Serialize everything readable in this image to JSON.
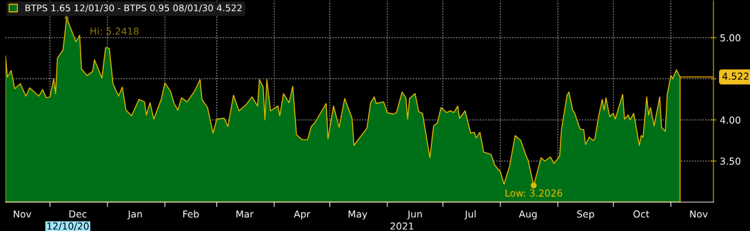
{
  "chart_data": {
    "type": "area",
    "x": [
      "2020-11-07",
      "2020-11-08",
      "2020-11-10",
      "2020-11-12",
      "2020-11-15",
      "2020-11-18",
      "2020-11-20",
      "2020-11-25",
      "2020-11-27",
      "2020-11-29",
      "2020-12-01",
      "2020-12-03",
      "2020-12-04",
      "2020-12-05",
      "2020-12-08",
      "2020-12-10",
      "2020-12-15",
      "2020-12-17",
      "2020-12-18",
      "2020-12-21",
      "2020-12-24",
      "2020-12-25",
      "2020-12-29",
      "2020-12-31",
      "2021-01-02",
      "2021-01-04",
      "2021-01-07",
      "2021-01-09",
      "2021-01-11",
      "2021-01-14",
      "2021-01-18",
      "2021-01-21",
      "2021-01-22",
      "2021-01-24",
      "2021-01-26",
      "2021-01-30",
      "2021-02-01",
      "2021-02-04",
      "2021-02-06",
      "2021-02-08",
      "2021-02-10",
      "2021-02-13",
      "2021-02-17",
      "2021-02-20",
      "2021-02-21",
      "2021-02-24",
      "2021-02-27",
      "2021-03-01",
      "2021-03-05",
      "2021-03-07",
      "2021-03-10",
      "2021-03-13",
      "2021-03-17",
      "2021-03-20",
      "2021-03-23",
      "2021-03-24",
      "2021-03-26",
      "2021-03-27",
      "2021-03-28",
      "2021-03-30",
      "2021-04-03",
      "2021-04-04",
      "2021-04-06",
      "2021-04-09",
      "2021-04-11",
      "2021-04-13",
      "2021-04-16",
      "2021-04-19",
      "2021-04-21",
      "2021-04-23",
      "2021-04-29",
      "2021-04-30",
      "2021-05-03",
      "2021-05-06",
      "2021-05-09",
      "2021-05-13",
      "2021-05-14",
      "2021-05-21",
      "2021-05-23",
      "2021-05-25",
      "2021-05-26",
      "2021-05-30",
      "2021-06-01",
      "2021-06-04",
      "2021-06-06",
      "2021-06-09",
      "2021-06-11",
      "2021-06-12",
      "2021-06-13",
      "2021-06-16",
      "2021-06-18",
      "2021-06-20",
      "2021-06-24",
      "2021-06-26",
      "2021-06-28",
      "2021-06-30",
      "2021-07-03",
      "2021-07-05",
      "2021-07-07",
      "2021-07-09",
      "2021-07-10",
      "2021-07-13",
      "2021-07-16",
      "2021-07-18",
      "2021-07-19",
      "2021-07-21",
      "2021-07-23",
      "2021-07-27",
      "2021-07-29",
      "2021-08-01",
      "2021-08-03",
      "2021-08-06",
      "2021-08-09",
      "2021-08-12",
      "2021-08-15",
      "2021-08-16",
      "2021-08-19",
      "2021-08-23",
      "2021-08-25",
      "2021-08-28",
      "2021-08-30",
      "2021-09-02",
      "2021-09-03",
      "2021-09-06",
      "2021-09-07",
      "2021-09-09",
      "2021-09-10",
      "2021-09-13",
      "2021-09-15",
      "2021-09-16",
      "2021-09-18",
      "2021-09-20",
      "2021-09-21",
      "2021-09-23",
      "2021-09-25",
      "2021-09-26",
      "2021-09-27",
      "2021-09-29",
      "2021-10-01",
      "2021-10-02",
      "2021-10-06",
      "2021-10-07",
      "2021-10-09",
      "2021-10-10",
      "2021-10-12",
      "2021-10-15",
      "2021-10-16",
      "2021-10-17",
      "2021-10-19",
      "2021-10-20",
      "2021-10-21",
      "2021-10-23",
      "2021-10-26",
      "2021-10-27",
      "2021-10-29",
      "2021-10-30",
      "2021-11-01",
      "2021-11-02",
      "2021-11-04",
      "2021-11-06"
    ],
    "series": [
      {
        "name": "BTPS 1.65 12/01/30 - BTPS 0.95 08/01/30 4.522",
        "color": "#007018",
        "values": [
          4.78,
          4.52,
          4.6,
          4.38,
          4.44,
          4.29,
          4.39,
          4.29,
          4.37,
          4.27,
          4.28,
          4.5,
          4.32,
          4.75,
          4.85,
          5.2418,
          4.95,
          5.03,
          4.62,
          4.54,
          4.59,
          4.73,
          4.51,
          4.88,
          4.87,
          4.44,
          4.29,
          4.4,
          4.12,
          4.05,
          4.25,
          4.22,
          4.06,
          4.21,
          4.01,
          4.25,
          4.45,
          4.35,
          4.2,
          4.12,
          4.27,
          4.22,
          4.35,
          4.49,
          4.25,
          4.15,
          3.84,
          4.01,
          4.02,
          3.92,
          4.3,
          4.11,
          4.19,
          4.28,
          4.17,
          4.49,
          4.4,
          4.0,
          4.49,
          4.11,
          4.17,
          4.05,
          4.32,
          4.21,
          4.41,
          3.82,
          3.76,
          3.76,
          3.92,
          3.97,
          4.2,
          3.77,
          4.17,
          3.91,
          4.26,
          4.02,
          3.69,
          3.9,
          4.21,
          4.28,
          4.2,
          4.22,
          4.09,
          4.07,
          4.09,
          4.34,
          4.27,
          4.01,
          4.26,
          4.32,
          4.1,
          4.08,
          3.54,
          3.93,
          3.96,
          4.15,
          4.09,
          4.11,
          4.09,
          4.17,
          4.02,
          4.11,
          3.84,
          3.85,
          3.78,
          3.85,
          3.61,
          3.58,
          3.45,
          3.37,
          3.22,
          3.44,
          3.81,
          3.75,
          3.56,
          3.51,
          3.2026,
          3.54,
          3.5,
          3.55,
          3.47,
          3.56,
          3.89,
          4.3,
          4.34,
          4.12,
          4.09,
          3.89,
          3.88,
          3.7,
          3.79,
          3.75,
          3.77,
          4.04,
          4.25,
          4.12,
          4.27,
          4.04,
          4.08,
          4.01,
          4.31,
          4.01,
          4.06,
          4.0,
          4.08,
          3.69,
          3.81,
          3.79,
          4.28,
          4.06,
          4.15,
          3.93,
          4.28,
          3.91,
          3.86,
          4.3,
          4.54,
          4.5,
          4.61,
          4.522
        ]
      }
    ],
    "xlim": [
      "2020-11-07",
      "2021-11-24"
    ],
    "xticks": [
      {
        "value": "2020-11-16",
        "label": "Nov"
      },
      {
        "value": "2020-12-01",
        "label": null
      },
      {
        "value": "2020-12-16",
        "label": "Dec"
      },
      {
        "value": "2021-01-01",
        "label": null
      },
      {
        "value": "2021-01-16",
        "label": "Jan"
      },
      {
        "value": "2021-02-01",
        "label": null
      },
      {
        "value": "2021-02-15",
        "label": "Feb"
      },
      {
        "value": "2021-03-01",
        "label": null
      },
      {
        "value": "2021-03-16",
        "label": "Mar"
      },
      {
        "value": "2021-04-01",
        "label": null
      },
      {
        "value": "2021-04-16",
        "label": "Apr"
      },
      {
        "value": "2021-05-01",
        "label": null
      },
      {
        "value": "2021-05-16",
        "label": "May"
      },
      {
        "value": "2021-06-01",
        "label": null
      },
      {
        "value": "2021-06-16",
        "label": "Jun"
      },
      {
        "value": "2021-07-01",
        "label": null
      },
      {
        "value": "2021-07-16",
        "label": "Jul"
      },
      {
        "value": "2021-08-01",
        "label": null
      },
      {
        "value": "2021-08-16",
        "label": "Aug"
      },
      {
        "value": "2021-09-01",
        "label": null
      },
      {
        "value": "2021-09-16",
        "label": "Sep"
      },
      {
        "value": "2021-10-01",
        "label": null
      },
      {
        "value": "2021-10-16",
        "label": "Oct"
      },
      {
        "value": "2021-11-01",
        "label": null
      },
      {
        "value": "2021-11-16",
        "label": "Nov"
      }
    ],
    "ylim": [
      3.0,
      5.45
    ],
    "yticks": [
      {
        "value": 3.5,
        "label": "3.50"
      },
      {
        "value": 4.0,
        "label": "4.00"
      },
      {
        "value": 4.5,
        "label": null
      },
      {
        "value": 5.0,
        "label": "5.00"
      }
    ],
    "ref_lines": [
      {
        "axis": "y",
        "value": 4.522,
        "label": "4.522",
        "color": "#e8a000"
      }
    ],
    "annotations": [
      {
        "text": "Hi: 5.2418",
        "x": "2020-12-10",
        "y": 5.2418
      },
      {
        "text": "Low: 3.2026",
        "x": "2021-08-19",
        "y": 3.2026
      },
      "12/10/20",
      "2021"
    ],
    "grid": true,
    "legend": "top left"
  }
}
